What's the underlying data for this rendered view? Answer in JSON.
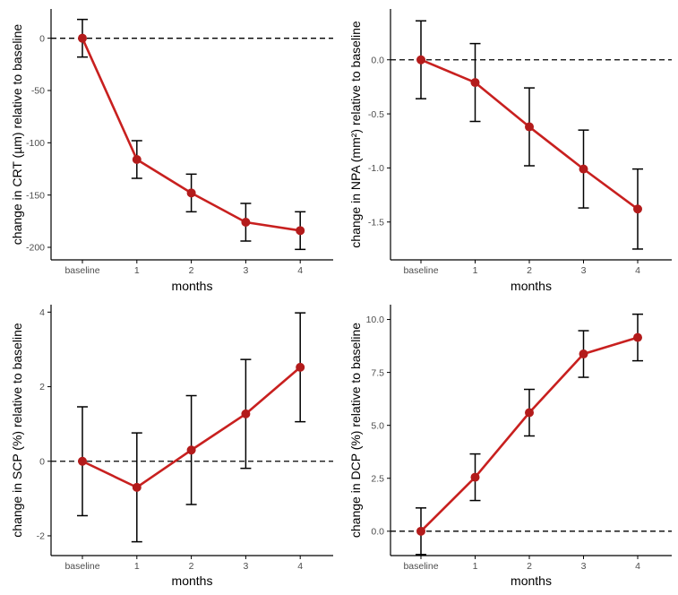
{
  "colors": {
    "series": "#c8201f",
    "point": "#b31b1b",
    "axis": "#000000",
    "tick_label": "#4d4d4d"
  },
  "chart_data": [
    {
      "type": "line",
      "categories": [
        "baseline",
        "1",
        "2",
        "3",
        "4"
      ],
      "values": [
        0,
        -116,
        -148,
        -176,
        -184
      ],
      "error": [
        18,
        18,
        18,
        18,
        18
      ],
      "ylim": [
        -212,
        28
      ],
      "yticks": [
        0,
        -50,
        -100,
        -150,
        -200
      ],
      "ytick_labels": [
        "0",
        "-50",
        "-100",
        "-150",
        "-200"
      ],
      "xlabel": "months",
      "ylabel": "change in CRT (µm) relative to baseline",
      "reference_line": 0,
      "grid": false
    },
    {
      "type": "line",
      "categories": [
        "baseline",
        "1",
        "2",
        "3",
        "4"
      ],
      "values": [
        0,
        -0.21,
        -0.62,
        -1.01,
        -1.38
      ],
      "error": [
        0.36,
        0.36,
        0.36,
        0.36,
        0.37
      ],
      "ylim": [
        -1.85,
        0.47
      ],
      "yticks": [
        0.0,
        -0.5,
        -1.0,
        -1.5
      ],
      "ytick_labels": [
        "0.0",
        "-0.5",
        "-1.0",
        "-1.5"
      ],
      "xlabel": "months",
      "ylabel": "change in NPA (mm²) relative to baseline",
      "reference_line": 0,
      "grid": false
    },
    {
      "type": "line",
      "categories": [
        "baseline",
        "1",
        "2",
        "3",
        "4"
      ],
      "values": [
        0,
        -0.7,
        0.3,
        1.27,
        2.52
      ],
      "error": [
        1.46,
        1.46,
        1.46,
        1.46,
        1.46
      ],
      "ylim": [
        -2.53,
        4.2
      ],
      "yticks": [
        4,
        2,
        0,
        -2
      ],
      "ytick_labels": [
        "4",
        "2",
        "0",
        "-2"
      ],
      "xlabel": "months",
      "ylabel": "change in SCP (%) relative to baseline",
      "reference_line": 0,
      "grid": false
    },
    {
      "type": "line",
      "categories": [
        "baseline",
        "1",
        "2",
        "3",
        "4"
      ],
      "values": [
        0,
        2.55,
        5.6,
        8.37,
        9.15
      ],
      "error": [
        1.1,
        1.1,
        1.1,
        1.1,
        1.1
      ],
      "ylim": [
        -1.15,
        10.7
      ],
      "yticks": [
        10.0,
        7.5,
        5.0,
        2.5,
        0.0
      ],
      "ytick_labels": [
        "10.0",
        "7.5",
        "5.0",
        "2.5",
        "0.0"
      ],
      "xlabel": "months",
      "ylabel": "change in DCP (%) relative to baseline",
      "reference_line": 0,
      "grid": false
    }
  ]
}
